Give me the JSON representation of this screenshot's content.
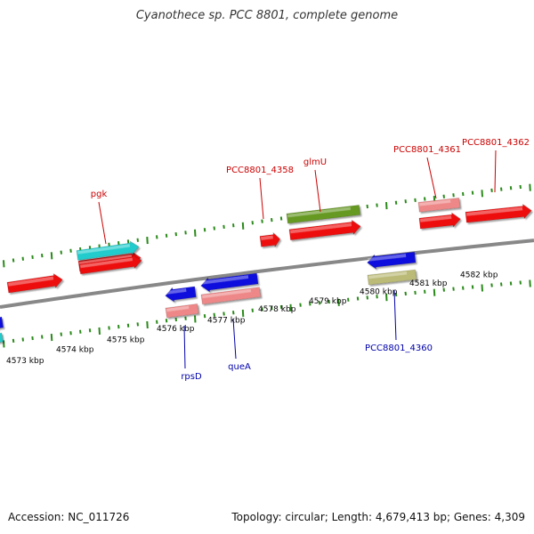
{
  "title": "Cyanothece sp. PCC 8801, complete genome",
  "footer": {
    "accession": "Accession: NC_011726",
    "summary": "Topology: circular; Length: 4,679,413 bp; Genes: 4,309"
  },
  "colors": {
    "backbone": "#888888",
    "tick": "#2a8a1a",
    "label_forward": "#cc0000",
    "label_reverse": "#0000aa"
  },
  "scale_labels": [
    "4573 kbp",
    "4574 kbp",
    "4575 kbp",
    "4576 kbp",
    "4577 kbp",
    "4578 kbp",
    "4579 kbp",
    "4580 kbp",
    "4581 kbp",
    "4582 kbp"
  ],
  "features": [
    {
      "name": "feature-cds-1",
      "color": "#ee1111",
      "dir": "right"
    },
    {
      "name": "feature-cds-2",
      "color": "#ee1111",
      "dir": "right"
    },
    {
      "name": "feature-pgk-gene",
      "color": "#22cccc",
      "dir": "right"
    },
    {
      "name": "feature-cds-3",
      "color": "#ee1111",
      "dir": "right"
    },
    {
      "name": "feature-rpsd-cds",
      "color": "#1111dd",
      "dir": "left"
    },
    {
      "name": "feature-rpsd-gene",
      "color": "#ee8888",
      "dir": "none"
    },
    {
      "name": "feature-quea-cds",
      "color": "#1111dd",
      "dir": "left"
    },
    {
      "name": "feature-quea-gene",
      "color": "#ee8888",
      "dir": "none"
    },
    {
      "name": "feature-pcc8801-4358",
      "color": "#ee1111",
      "dir": "right"
    },
    {
      "name": "feature-glmu-gene",
      "color": "#669922",
      "dir": "none"
    },
    {
      "name": "feature-glmu-cds",
      "color": "#ee1111",
      "dir": "right"
    },
    {
      "name": "feature-pcc8801-4360-cds",
      "color": "#1111dd",
      "dir": "left"
    },
    {
      "name": "feature-pcc8801-4360-gene",
      "color": "#bbbb77",
      "dir": "none"
    },
    {
      "name": "feature-pcc8801-4361-gene",
      "color": "#ee8888",
      "dir": "none"
    },
    {
      "name": "feature-pcc8801-4361-cds",
      "color": "#ee1111",
      "dir": "right"
    },
    {
      "name": "feature-pcc8801-4362",
      "color": "#ee1111",
      "dir": "right"
    },
    {
      "name": "feature-left-blue",
      "color": "#1111dd",
      "dir": "left"
    },
    {
      "name": "feature-left-cyan",
      "color": "#22cccc",
      "dir": "none"
    }
  ],
  "labels": [
    {
      "name": "label-pgk",
      "text": "pgk",
      "side": "forward"
    },
    {
      "name": "label-pcc8801-4358",
      "text": "PCC8801_4358",
      "side": "forward"
    },
    {
      "name": "label-glmu",
      "text": "glmU",
      "side": "forward"
    },
    {
      "name": "label-pcc8801-4361",
      "text": "PCC8801_4361",
      "side": "forward"
    },
    {
      "name": "label-pcc8801-4362",
      "text": "PCC8801_4362",
      "side": "forward"
    },
    {
      "name": "label-rpsd",
      "text": "rpsD",
      "side": "reverse"
    },
    {
      "name": "label-quea",
      "text": "queA",
      "side": "reverse"
    },
    {
      "name": "label-pcc8801-4360",
      "text": "PCC8801_4360",
      "side": "reverse"
    }
  ]
}
